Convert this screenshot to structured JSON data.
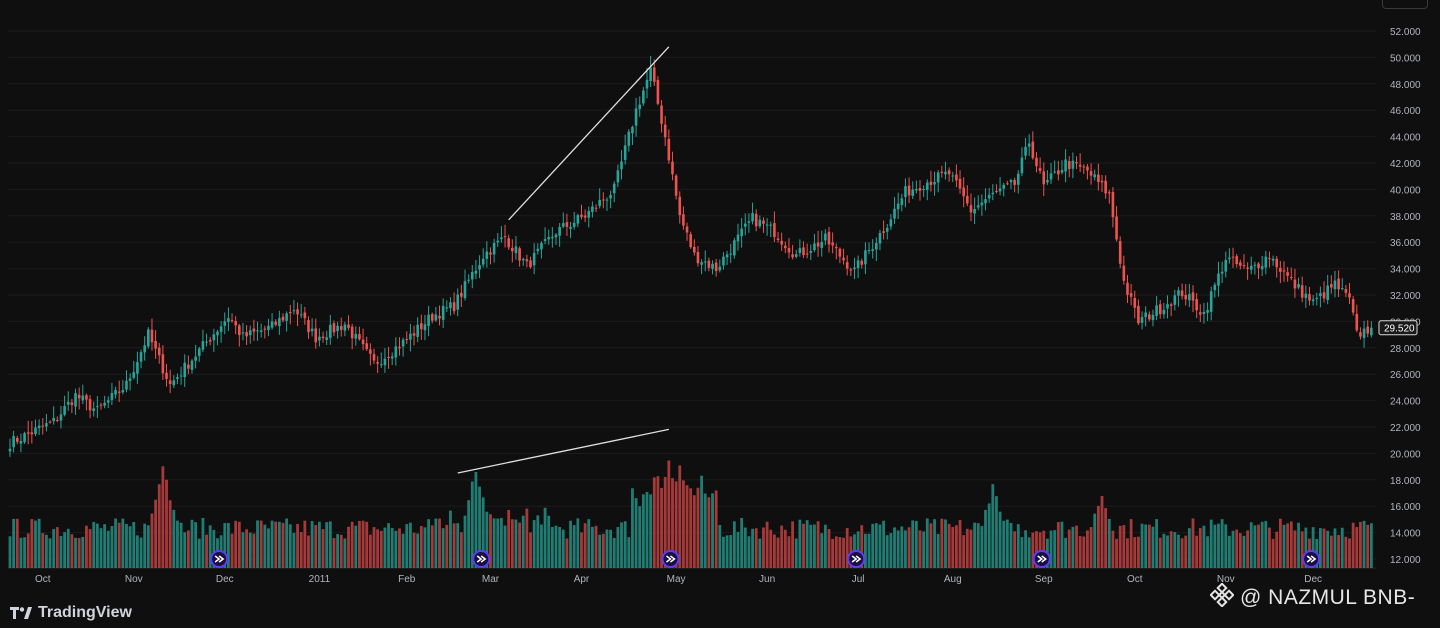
{
  "brand": {
    "name": "TradingView"
  },
  "watermark": {
    "text": "@ NAZMUL BNB-"
  },
  "colors": {
    "up": "#26a69a",
    "down": "#ef5350",
    "vol_up": "#1f7d73",
    "vol_down": "#a63a3a",
    "background": "#0f0f0f",
    "grid": "#1c1c1c",
    "axis_text": "#b2b5be",
    "event_marker": "#5b3df5"
  },
  "icons": {
    "event_marker": "play-circle-icon",
    "brand": "tradingview-logo-icon",
    "watermark": "binance-logo-icon"
  },
  "chart_data": {
    "type": "candlestick",
    "x_axis": {
      "ticks": [
        "Oct",
        "Nov",
        "Dec",
        "2011",
        "Feb",
        "Mar",
        "Apr",
        "May",
        "Jun",
        "Jul",
        "Aug",
        "Sep",
        "Oct",
        "Nov",
        "Dec"
      ]
    },
    "y_axis": {
      "position": "right",
      "range": [
        11.0,
        53.0
      ],
      "ticks": [
        "12.000",
        "14.000",
        "16.000",
        "18.000",
        "20.000",
        "22.000",
        "24.000",
        "26.000",
        "28.000",
        "30.000",
        "32.000",
        "34.000",
        "36.000",
        "38.000",
        "40.000",
        "42.000",
        "44.000",
        "46.000",
        "48.000",
        "50.000",
        "52.000"
      ]
    },
    "last_price": {
      "value": 29.52,
      "label": "29.520"
    },
    "grid": true,
    "start_index": 0,
    "anchors": [
      [
        0,
        20.8
      ],
      [
        12,
        22.4
      ],
      [
        18,
        24.4
      ],
      [
        24,
        23.2
      ],
      [
        32,
        25.2
      ],
      [
        38,
        29.0
      ],
      [
        44,
        25.2
      ],
      [
        52,
        27.8
      ],
      [
        60,
        30.4
      ],
      [
        64,
        28.8
      ],
      [
        72,
        29.6
      ],
      [
        78,
        31.0
      ],
      [
        84,
        28.8
      ],
      [
        92,
        29.8
      ],
      [
        100,
        26.8
      ],
      [
        108,
        28.4
      ],
      [
        116,
        30.4
      ],
      [
        122,
        31.2
      ],
      [
        130,
        35.0
      ],
      [
        136,
        36.4
      ],
      [
        142,
        34.2
      ],
      [
        150,
        36.8
      ],
      [
        158,
        38.0
      ],
      [
        166,
        40.0
      ],
      [
        172,
        46.0
      ],
      [
        176,
        49.0
      ],
      [
        180,
        44.0
      ],
      [
        184,
        38.0
      ],
      [
        188,
        35.0
      ],
      [
        194,
        34.0
      ],
      [
        204,
        37.8
      ],
      [
        210,
        36.8
      ],
      [
        216,
        35.0
      ],
      [
        224,
        36.2
      ],
      [
        232,
        33.8
      ],
      [
        240,
        37.0
      ],
      [
        246,
        39.8
      ],
      [
        252,
        40.6
      ],
      [
        258,
        41.2
      ],
      [
        264,
        38.4
      ],
      [
        270,
        39.6
      ],
      [
        276,
        40.4
      ],
      [
        280,
        43.6
      ],
      [
        284,
        40.2
      ],
      [
        290,
        42.0
      ],
      [
        296,
        41.4
      ],
      [
        302,
        39.6
      ],
      [
        306,
        33.0
      ],
      [
        310,
        30.0
      ],
      [
        316,
        31.0
      ],
      [
        322,
        32.2
      ],
      [
        328,
        30.6
      ],
      [
        334,
        34.8
      ],
      [
        340,
        33.8
      ],
      [
        346,
        35.0
      ],
      [
        352,
        33.0
      ],
      [
        358,
        31.4
      ],
      [
        364,
        32.8
      ],
      [
        368,
        31.6
      ],
      [
        370,
        29.0
      ],
      [
        374,
        29.52
      ]
    ],
    "volume": {
      "range": [
        0,
        100
      ],
      "peaks": [
        [
          42,
          75
        ],
        [
          128,
          72
        ],
        [
          181,
          80
        ],
        [
          184,
          72
        ],
        [
          190,
          62
        ],
        [
          270,
          58
        ],
        [
          300,
          52
        ]
      ]
    },
    "event_markers": [
      58,
      130,
      182,
      233,
      284,
      358
    ],
    "annotations": [
      {
        "type": "trendline",
        "pane": "price",
        "from": [
          137,
          37.7
        ],
        "to": [
          181,
          50.8
        ]
      },
      {
        "type": "trendline",
        "pane": "volume",
        "from": [
          123,
          72
        ],
        "to": [
          181,
          105
        ]
      }
    ]
  }
}
